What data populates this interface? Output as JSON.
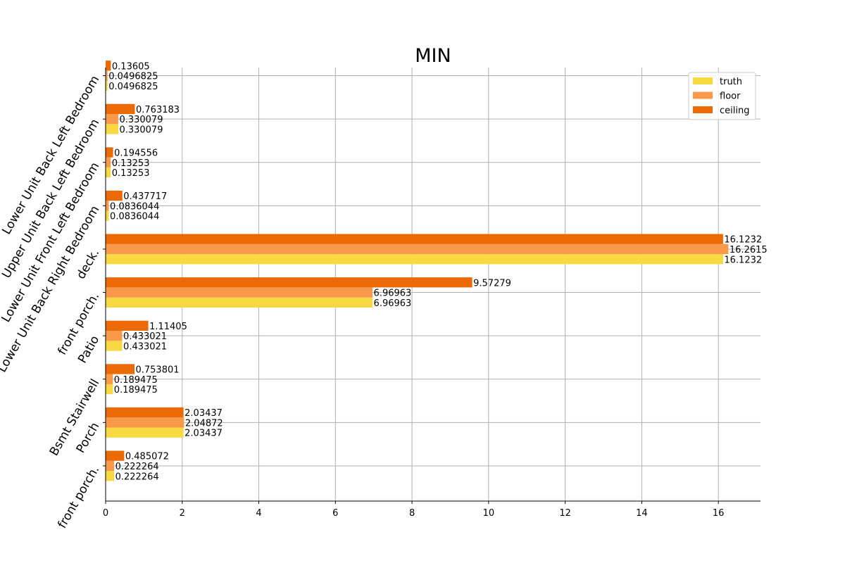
{
  "chart_data": {
    "type": "bar",
    "orientation": "horizontal",
    "title": "MIN",
    "xlabel": "",
    "ylabel": "",
    "xlim": [
      0,
      17.1
    ],
    "x_ticks": [
      0,
      2,
      4,
      6,
      8,
      10,
      12,
      14,
      16
    ],
    "grid": true,
    "legend_position": "top-right",
    "categories": [
      "Lower Unit Back Left Bedroom",
      "Upper Unit Back Left Bedroom",
      "Lower Unit Front Left Bedroom",
      "Lower Unit Back Right Bedroom",
      "deck.",
      "front porch.",
      "Patio",
      "Bsmt Stairwell",
      "Porch",
      "front porch."
    ],
    "series": [
      {
        "name": "truth",
        "color": "#f9d942",
        "values": [
          0.0496825,
          0.330079,
          0.13253,
          0.0836044,
          16.1232,
          6.96963,
          0.433021,
          0.189475,
          2.03437,
          0.222264
        ],
        "labels": [
          "0.0496825",
          "0.330079",
          "0.13253",
          "0.0836044",
          "16.1232",
          "6.96963",
          "0.433021",
          "0.189475",
          "2.03437",
          "0.222264"
        ]
      },
      {
        "name": "floor",
        "color": "#f99a4a",
        "values": [
          0.0496825,
          0.330079,
          0.13253,
          0.0836044,
          16.2615,
          6.96963,
          0.433021,
          0.189475,
          2.04872,
          0.222264
        ],
        "labels": [
          "0.0496825",
          "0.330079",
          "0.13253",
          "0.0836044",
          "16.2615",
          "6.96963",
          "0.433021",
          "0.189475",
          "2.04872",
          "0.222264"
        ]
      },
      {
        "name": "ceiling",
        "color": "#ec6a05",
        "values": [
          0.13605,
          0.763183,
          0.194556,
          0.437717,
          16.1232,
          9.57279,
          1.11405,
          0.753801,
          2.03437,
          0.485072
        ],
        "labels": [
          "0.13605",
          "0.763183",
          "0.194556",
          "0.437717",
          "16.1232",
          "9.57279",
          "1.11405",
          "0.753801",
          "2.03437",
          "0.485072"
        ]
      }
    ]
  }
}
